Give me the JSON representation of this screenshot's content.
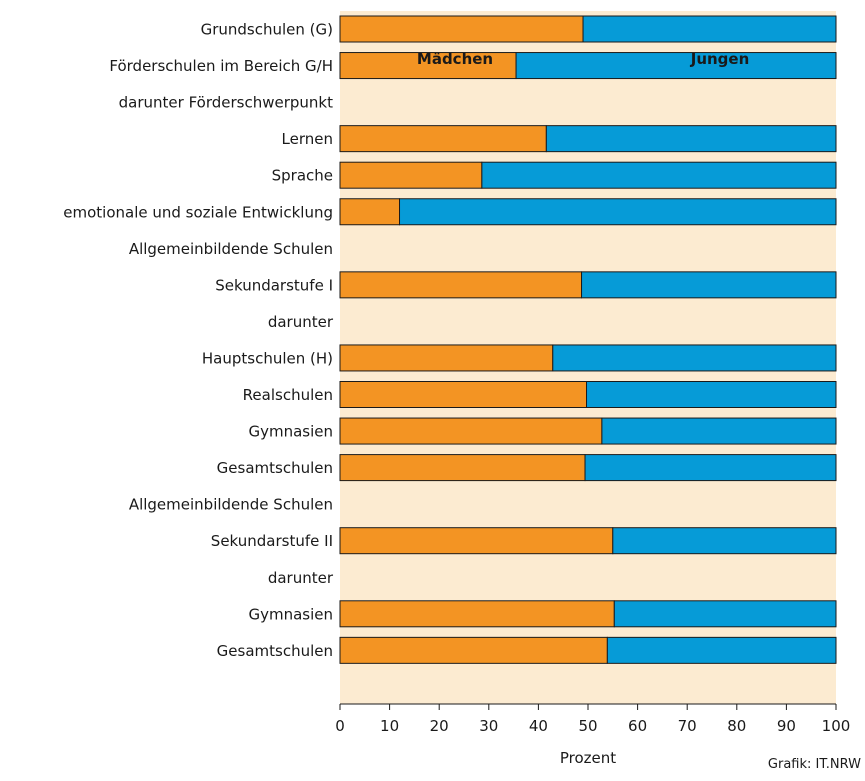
{
  "chart_data": {
    "type": "bar",
    "orientation": "horizontal",
    "stacked": true,
    "rows": [
      {
        "label": "Grundschulen (G)",
        "bar": true
      },
      {
        "label": "Förderschulen im Bereich G/H",
        "bar": true
      },
      {
        "label": "darunter Förderschwerpunkt",
        "bar": false
      },
      {
        "label": "Lernen",
        "bar": true
      },
      {
        "label": "Sprache",
        "bar": true
      },
      {
        "label": "emotionale und soziale Entwicklung",
        "bar": true
      },
      {
        "label": "Allgemeinbildende Schulen",
        "bar": false
      },
      {
        "label": "Sekundarstufe I",
        "bar": true
      },
      {
        "label": "darunter",
        "bar": false
      },
      {
        "label": "Hauptschulen (H)",
        "bar": true
      },
      {
        "label": "Realschulen",
        "bar": true
      },
      {
        "label": "Gymnasien",
        "bar": true
      },
      {
        "label": "Gesamtschulen",
        "bar": true
      },
      {
        "label": "Allgemeinbildende Schulen",
        "bar": false
      },
      {
        "label": "Sekundarstufe II",
        "bar": true
      },
      {
        "label": "darunter",
        "bar": false
      },
      {
        "label": "Gymnasien",
        "bar": true
      },
      {
        "label": "Gesamtschulen",
        "bar": true
      }
    ],
    "series": [
      {
        "name": "Mädchen",
        "color": "#f39423",
        "values": [
          49.0,
          35.5,
          null,
          41.6,
          28.6,
          12.0,
          null,
          48.7,
          null,
          42.9,
          49.7,
          52.8,
          49.4,
          null,
          55.0,
          null,
          55.3,
          53.9
        ]
      },
      {
        "name": "Jungen",
        "color": "#069bd7",
        "values": [
          51.0,
          64.5,
          null,
          58.4,
          71.4,
          88.0,
          null,
          51.3,
          null,
          57.1,
          50.3,
          47.2,
          50.6,
          null,
          45.0,
          null,
          44.7,
          46.1
        ]
      }
    ],
    "xlim": [
      0,
      100
    ],
    "xticks": [
      "0",
      "10",
      "20",
      "30",
      "40",
      "50",
      "60",
      "70",
      "80",
      "90",
      "100"
    ],
    "xlabel": "Prozent",
    "legend_placement": "inside-top",
    "plot_background": "#fcebd1",
    "grid": false
  },
  "credit": "Grafik: IT.NRW"
}
